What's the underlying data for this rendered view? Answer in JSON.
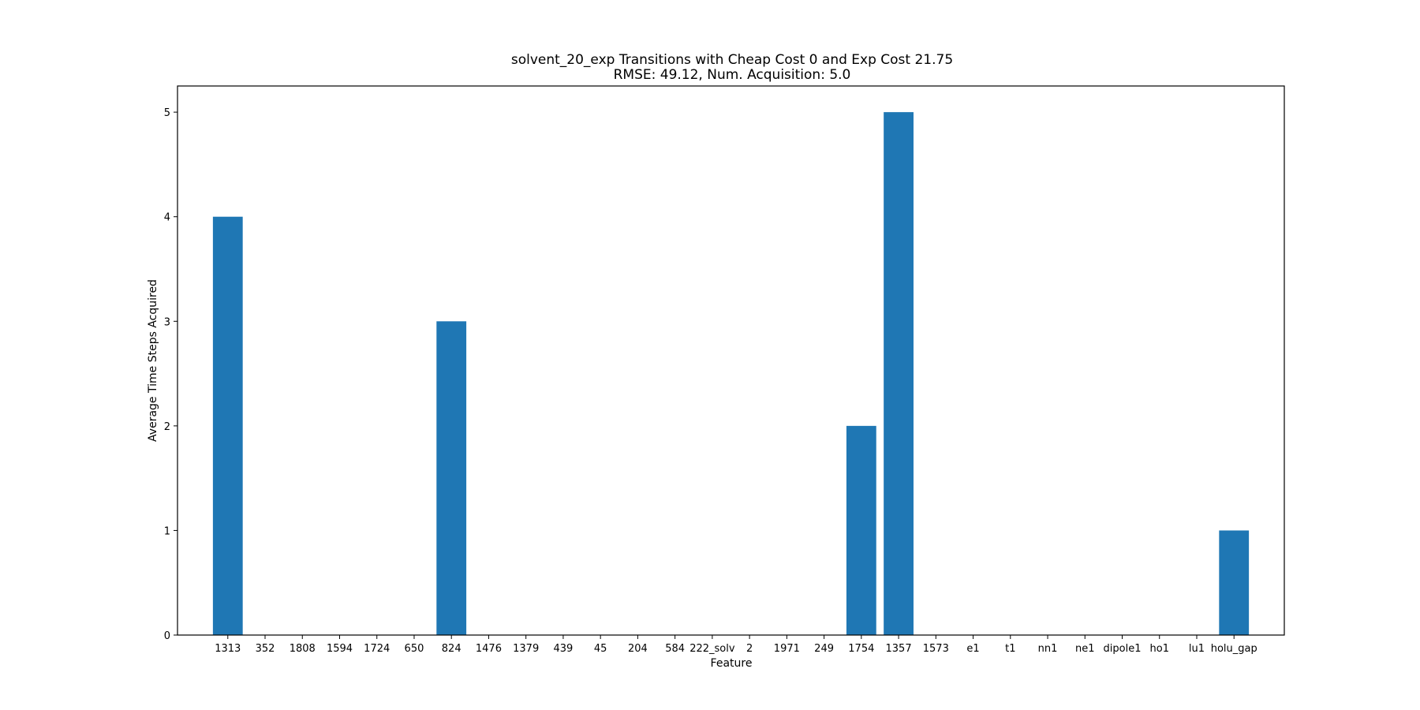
{
  "chart_data": {
    "type": "bar",
    "title": "solvent_20_exp Transitions with Cheap Cost 0 and Exp Cost 21.75",
    "subtitle": "RMSE: 49.12, Num. Acquisition: 5.0",
    "xlabel": "Feature",
    "ylabel": "Average Time Steps Acquired",
    "categories": [
      "1313",
      "352",
      "1808",
      "1594",
      "1724",
      "650",
      "824",
      "1476",
      "1379",
      "439",
      "45",
      "204",
      "584",
      "222_solv",
      "2",
      "1971",
      "249",
      "1754",
      "1357",
      "1573",
      "e1",
      "t1",
      "nn1",
      "ne1",
      "dipole1",
      "ho1",
      "lu1",
      "holu_gap"
    ],
    "values": [
      4,
      0,
      0,
      0,
      0,
      0,
      3,
      0,
      0,
      0,
      0,
      0,
      0,
      0,
      0,
      0,
      0,
      2,
      5,
      0,
      0,
      0,
      0,
      0,
      0,
      0,
      0,
      1
    ],
    "ylim": [
      0,
      5.25
    ],
    "yticks": [
      0,
      1,
      2,
      3,
      4,
      5
    ],
    "ytick_labels": [
      "0",
      "1",
      "2",
      "3",
      "4",
      "5"
    ],
    "bar_color": "#1f77b4",
    "grid": false,
    "legend": "none"
  }
}
